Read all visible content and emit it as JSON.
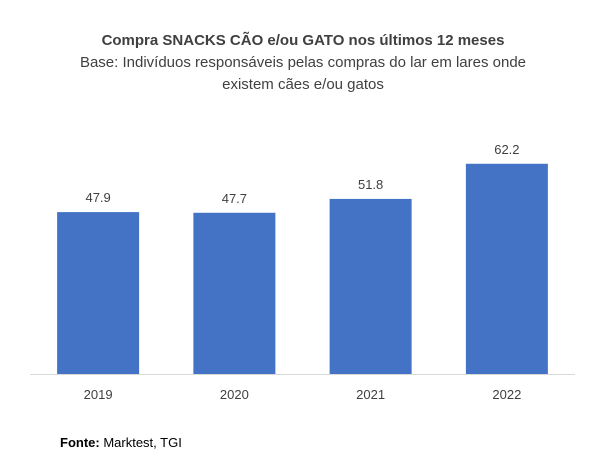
{
  "chart_data": {
    "type": "bar",
    "title": "Compra SNACKS CÃO e/ou GATO nos últimos 12 meses",
    "subtitle": [
      "Base: Indivíduos responsáveis pelas compras do lar em lares onde",
      "existem cães e/ou gatos"
    ],
    "categories": [
      "2019",
      "2020",
      "2021",
      "2022"
    ],
    "values": [
      47.9,
      47.7,
      51.8,
      62.2
    ],
    "value_labels": [
      "47.9",
      "47.7",
      "51.8",
      "62.2"
    ],
    "ylim": [
      0,
      100
    ],
    "grid": false,
    "legend": "none",
    "bar_color": "#4472C4",
    "axis_color": "#D9D9D9"
  },
  "source": {
    "label": "Fonte:",
    "text": " Marktest, TGI"
  }
}
